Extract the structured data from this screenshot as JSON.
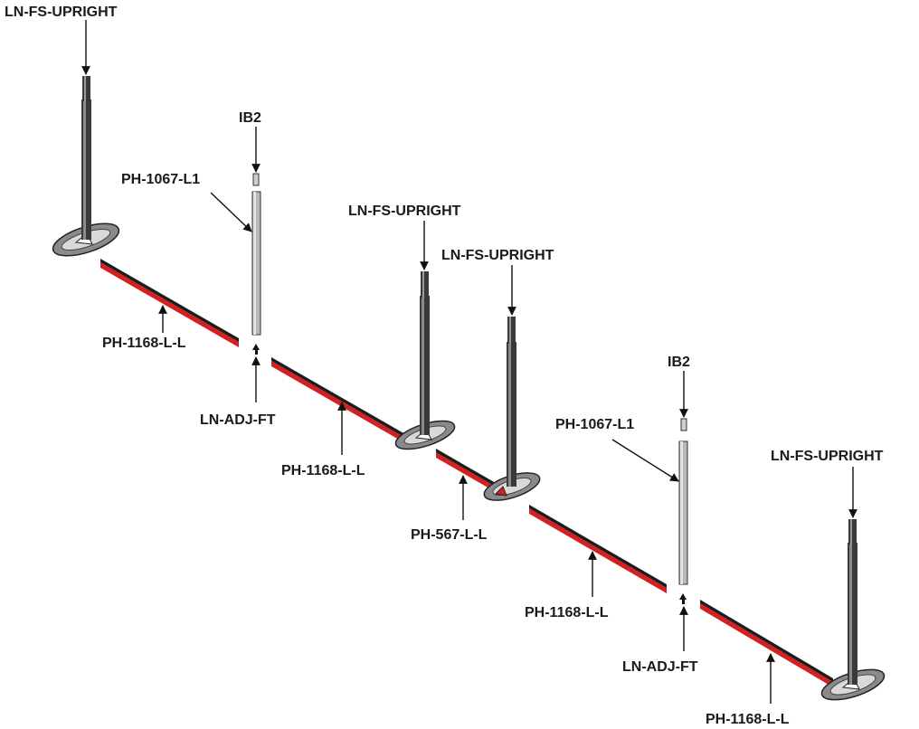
{
  "labels": {
    "upright_1": "LN-FS-UPRIGHT",
    "ib2_1": "IB2",
    "pole_1": "PH-1067-L1",
    "upright_2": "LN-FS-UPRIGHT",
    "upright_3": "LN-FS-UPRIGHT",
    "rail_1": "PH-1168-L-L",
    "foot_1": "LN-ADJ-FT",
    "rail_2": "PH-1168-L-L",
    "rail_short": "PH-567-L-L",
    "ib2_2": "IB2",
    "pole_2": "PH-1067-L1",
    "upright_4": "LN-FS-UPRIGHT",
    "rail_3": "PH-1168-L-L",
    "foot_2": "LN-ADJ-FT",
    "rail_4": "PH-1168-L-L"
  },
  "colors": {
    "rail_red": "#d42020",
    "rail_dark": "#1c1c1c",
    "upright_dark": "#3a3a3a",
    "pole_grey": "#b9b9b9",
    "base_grey": "#8a8a8a",
    "leader": "#111111"
  }
}
